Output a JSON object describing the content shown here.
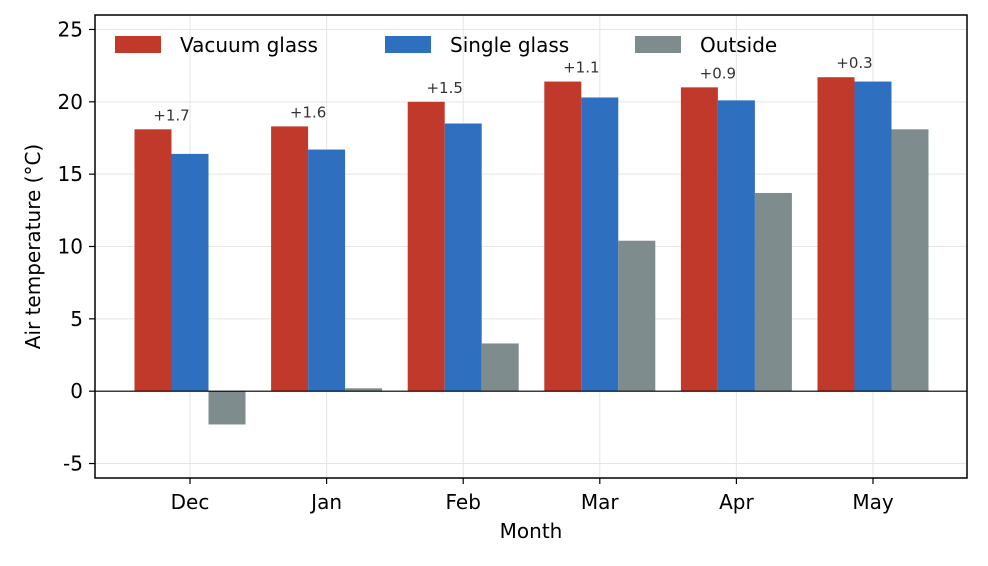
{
  "chart_data": {
    "type": "bar",
    "title": "",
    "xlabel": "Month",
    "ylabel": "Air temperature (°C)",
    "categories": [
      "Dec",
      "Jan",
      "Feb",
      "Mar",
      "Apr",
      "May"
    ],
    "ylim": [
      -6,
      26
    ],
    "yticks": [
      -5,
      0,
      5,
      10,
      15,
      20,
      25
    ],
    "ytick_labels": [
      "-5",
      "0",
      "5",
      "10",
      "15",
      "20",
      "25"
    ],
    "grid": true,
    "zero_line": true,
    "legend": {
      "position": "top-left",
      "ncol": 3
    },
    "series": [
      {
        "name": "Vacuum glass",
        "color": "#c0392b",
        "values": [
          18.1,
          18.3,
          20.0,
          21.4,
          21.0,
          21.7
        ]
      },
      {
        "name": "Single glass",
        "color": "#2e6fc0",
        "values": [
          16.4,
          16.7,
          18.5,
          20.3,
          20.1,
          21.4
        ]
      },
      {
        "name": "Outside",
        "color": "#7f8c8d",
        "values": [
          -2.3,
          0.2,
          3.3,
          10.4,
          13.7,
          18.1
        ]
      }
    ],
    "annotations": [
      "+1.7",
      "+1.6",
      "+1.5",
      "+1.1",
      "+0.9",
      "+0.3"
    ]
  }
}
